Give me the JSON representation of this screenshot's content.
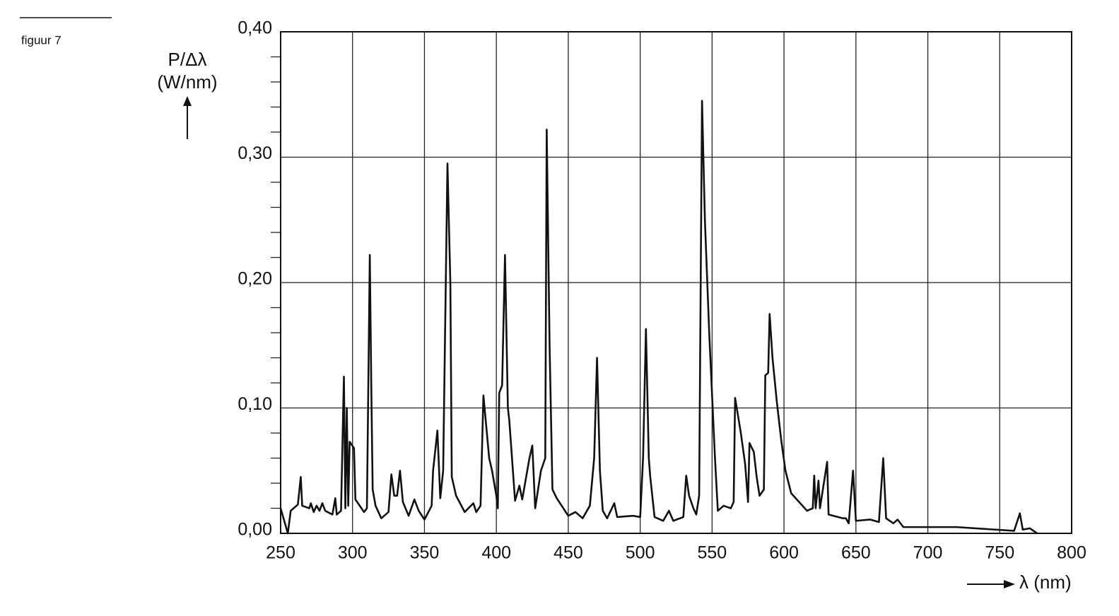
{
  "chart_data": {
    "type": "line",
    "figure_label": "figuur 7",
    "y_label": "P/Δλ",
    "y_unit": "(W/nm)",
    "x_label": "λ (nm)",
    "x": [
      250,
      255,
      257,
      262,
      264,
      265,
      270,
      271,
      273,
      275,
      277,
      279,
      281,
      286,
      288,
      289,
      292,
      294,
      295,
      296,
      297,
      298,
      301,
      302,
      308,
      310,
      312,
      313,
      314,
      316,
      320,
      325,
      327,
      329,
      331,
      333,
      335,
      339,
      343,
      346,
      350,
      355,
      356,
      359,
      361,
      363,
      366,
      368,
      369,
      372,
      378,
      384,
      386,
      389,
      391,
      395,
      397,
      400,
      401,
      402,
      404,
      406,
      408,
      409,
      413,
      416,
      418,
      423,
      425,
      427,
      431,
      434,
      435,
      437,
      439,
      442,
      450,
      455,
      460,
      465,
      468,
      470,
      472,
      474,
      477,
      482,
      484,
      495,
      500,
      502,
      504,
      506,
      507,
      510,
      516,
      520,
      523,
      530,
      532,
      534,
      537,
      539,
      541,
      543,
      545,
      548,
      552,
      554,
      558,
      563,
      565,
      566,
      570,
      573,
      575,
      576,
      579,
      581,
      583,
      586,
      587,
      589,
      590,
      592,
      595,
      598,
      601,
      605,
      616,
      620,
      621,
      622,
      624,
      625,
      630,
      631,
      641,
      643,
      645,
      648,
      650,
      660,
      666,
      669,
      671,
      676,
      679,
      683,
      700,
      720,
      760,
      764,
      766,
      771,
      776
    ],
    "values": [
      0.02,
      0,
      0.018,
      0.023,
      0.045,
      0.022,
      0.02,
      0.024,
      0.017,
      0.022,
      0.018,
      0.024,
      0.018,
      0.015,
      0.028,
      0.015,
      0.018,
      0.125,
      0.02,
      0.1,
      0.022,
      0.073,
      0.068,
      0.027,
      0.017,
      0.02,
      0.222,
      0.12,
      0.035,
      0.022,
      0.012,
      0.017,
      0.047,
      0.03,
      0.03,
      0.05,
      0.025,
      0.014,
      0.027,
      0.018,
      0.011,
      0.022,
      0.05,
      0.082,
      0.028,
      0.05,
      0.295,
      0.2,
      0.045,
      0.03,
      0.017,
      0.024,
      0.017,
      0.022,
      0.11,
      0.06,
      0.05,
      0.03,
      0.02,
      0.112,
      0.118,
      0.222,
      0.1,
      0.09,
      0.026,
      0.038,
      0.027,
      0.06,
      0.07,
      0.02,
      0.05,
      0.06,
      0.322,
      0.15,
      0.035,
      0.028,
      0.014,
      0.017,
      0.012,
      0.022,
      0.06,
      0.14,
      0.05,
      0.018,
      0.012,
      0.024,
      0.013,
      0.014,
      0.013,
      0.06,
      0.163,
      0.06,
      0.045,
      0.013,
      0.01,
      0.018,
      0.01,
      0.013,
      0.046,
      0.03,
      0.02,
      0.015,
      0.03,
      0.345,
      0.25,
      0.16,
      0.06,
      0.018,
      0.022,
      0.02,
      0.025,
      0.108,
      0.08,
      0.055,
      0.025,
      0.072,
      0.065,
      0.045,
      0.03,
      0.035,
      0.126,
      0.128,
      0.175,
      0.14,
      0.105,
      0.075,
      0.05,
      0.032,
      0.018,
      0.02,
      0.046,
      0.02,
      0.042,
      0.02,
      0.057,
      0.015,
      0.012,
      0.012,
      0.008,
      0.05,
      0.01,
      0.011,
      0.009,
      0.06,
      0.012,
      0.008,
      0.011,
      0.005,
      0.005,
      0.005,
      0.002,
      0.016,
      0.003,
      0.004,
      0
    ],
    "color": "#111111",
    "xlim": [
      250,
      800
    ],
    "ylim": [
      0,
      0.4
    ],
    "xticks": [
      250,
      300,
      350,
      400,
      450,
      500,
      550,
      600,
      650,
      700,
      750,
      800
    ],
    "yticks": [
      {
        "value": 0,
        "label": "0,00"
      },
      {
        "value": 0.1,
        "label": "0,10"
      },
      {
        "value": 0.2,
        "label": "0,20"
      },
      {
        "value": 0.3,
        "label": "0,30"
      },
      {
        "value": 0.4,
        "label": "0,40"
      }
    ],
    "yminorticks": [
      0.02,
      0.04,
      0.06,
      0.08,
      0.12,
      0.14,
      0.16,
      0.18,
      0.22,
      0.24,
      0.26,
      0.28,
      0.32,
      0.34,
      0.36,
      0.38
    ],
    "grid": true
  }
}
